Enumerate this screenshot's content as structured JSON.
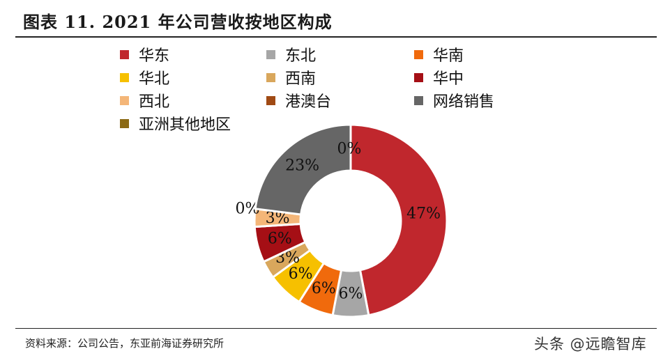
{
  "header": {
    "title": "图表 11. 2021 年公司营收按地区构成"
  },
  "legend": {
    "items": [
      {
        "label": "华东",
        "color": "#C0272D"
      },
      {
        "label": "东北",
        "color": "#A6A6A6"
      },
      {
        "label": "华南",
        "color": "#F06A0C"
      },
      {
        "label": "华北",
        "color": "#F6C000"
      },
      {
        "label": "西南",
        "color": "#D9A75C"
      },
      {
        "label": "华中",
        "color": "#A50F15"
      },
      {
        "label": "西北",
        "color": "#F4B678"
      },
      {
        "label": "港澳台",
        "color": "#A04A14"
      },
      {
        "label": "网络销售",
        "color": "#666666"
      },
      {
        "label": "亚洲其他地区",
        "color": "#8B6914"
      }
    ]
  },
  "chart_data": {
    "type": "pie",
    "donut": true,
    "categories": [
      "华东",
      "东北",
      "华南",
      "华北",
      "西南",
      "华中",
      "西北",
      "港澳台",
      "网络销售",
      "亚洲其他地区"
    ],
    "values": [
      47,
      6,
      6,
      6,
      3,
      6,
      3,
      0,
      23,
      0
    ],
    "data_labels": [
      "47%",
      "6%",
      "6%",
      "6%",
      "3%",
      "6%",
      "3%",
      "0%",
      "23%",
      "0%"
    ],
    "colors": [
      "#C0272D",
      "#A6A6A6",
      "#F06A0C",
      "#F6C000",
      "#D9A75C",
      "#A50F15",
      "#F4B678",
      "#A04A14",
      "#666666",
      "#8B6914"
    ],
    "start": "top",
    "direction": "clockwise",
    "legend_position": "top"
  },
  "footer": {
    "source": "资料来源：公司公告，东亚前海证券研究所",
    "watermark": "头条 @远瞻智库"
  }
}
